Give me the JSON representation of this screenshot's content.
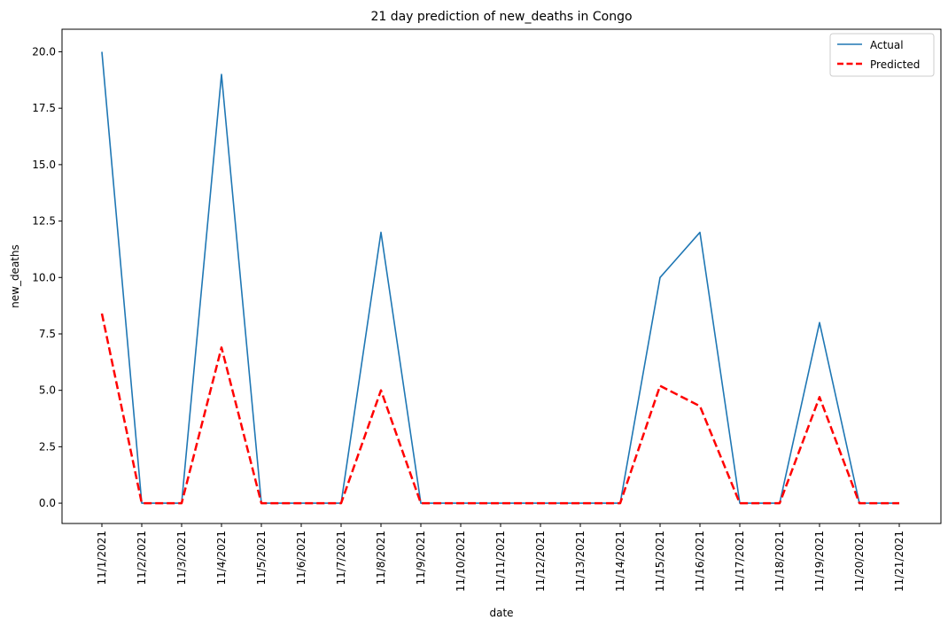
{
  "chart_data": {
    "type": "line",
    "title": "21 day prediction of new_deaths in Congo",
    "xlabel": "date",
    "ylabel": "new_deaths",
    "categories": [
      "11/1/2021",
      "11/2/2021",
      "11/3/2021",
      "11/4/2021",
      "11/5/2021",
      "11/6/2021",
      "11/7/2021",
      "11/8/2021",
      "11/9/2021",
      "11/10/2021",
      "11/11/2021",
      "11/12/2021",
      "11/13/2021",
      "11/14/2021",
      "11/15/2021",
      "11/16/2021",
      "11/17/2021",
      "11/18/2021",
      "11/19/2021",
      "11/20/2021",
      "11/21/2021"
    ],
    "yticks": [
      "0.0",
      "2.5",
      "5.0",
      "7.5",
      "10.0",
      "12.5",
      "15.0",
      "17.5",
      "20.0"
    ],
    "ylim": [
      -0.9,
      21.0
    ],
    "grid": false,
    "legend_position": "top-right",
    "series": [
      {
        "name": "Actual",
        "color": "#1f77b4",
        "style": "solid",
        "values": [
          20,
          0,
          0,
          19,
          0,
          0,
          0,
          12,
          0,
          0,
          0,
          0,
          0,
          0,
          10,
          12,
          0,
          0,
          8,
          0,
          0
        ]
      },
      {
        "name": "Predicted",
        "color": "#ff0000",
        "style": "dashed",
        "values": [
          8.4,
          0,
          0,
          6.9,
          0,
          0,
          0,
          5.0,
          0,
          0,
          0,
          0,
          0,
          0,
          5.2,
          4.3,
          0,
          0,
          4.7,
          0,
          0
        ]
      }
    ]
  }
}
